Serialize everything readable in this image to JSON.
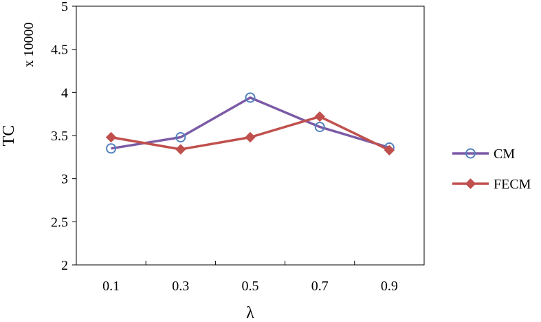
{
  "chart_data": {
    "type": "line",
    "categories": [
      "0.1",
      "0.3",
      "0.5",
      "0.7",
      "0.9"
    ],
    "xlabel": "λ",
    "ylabel": "TC",
    "y_multiplier_label": "x 10000",
    "ylim": [
      2,
      5
    ],
    "yticks": [
      "2",
      "2.5",
      "3",
      "3.5",
      "4",
      "4.5",
      "5"
    ],
    "grid": false,
    "legend_position": "right",
    "series": [
      {
        "name": "CM",
        "values": [
          3.35,
          3.48,
          3.94,
          3.6,
          3.36
        ],
        "color": "#7b5aa6",
        "marker": "open-circle",
        "marker_color": "#4f81bd"
      },
      {
        "name": "FECM",
        "values": [
          3.48,
          3.34,
          3.48,
          3.72,
          3.33
        ],
        "color": "#c0504d",
        "marker": "diamond",
        "marker_color": "#c0504d"
      }
    ]
  }
}
